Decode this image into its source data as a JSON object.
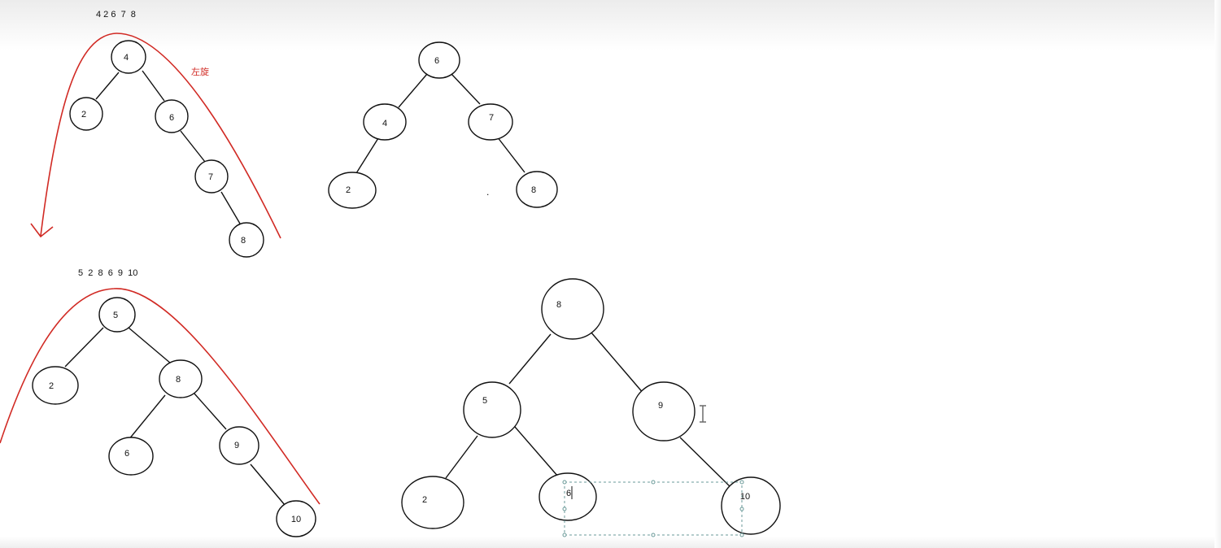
{
  "sequences": {
    "top": "4 2 6  7  8",
    "bottom": "5  2  8  6  9  10"
  },
  "annotation": {
    "text": "左旋",
    "color": "#d12a24"
  },
  "trees": {
    "t1": {
      "n4": "4",
      "n2": "2",
      "n6": "6",
      "n7": "7",
      "n8": "8"
    },
    "t2": {
      "n6": "6",
      "n4": "4",
      "n7": "7",
      "n2": "2",
      "n8": "8"
    },
    "t3": {
      "n5": "5",
      "n2": "2",
      "n8": "8",
      "n6": "6",
      "n9": "9",
      "n10": "10"
    },
    "t4": {
      "n8": "8",
      "n5": "5",
      "n9": "9",
      "n2": "2",
      "n6": "6",
      "n10": "10"
    }
  },
  "stray_mark": ".",
  "colors": {
    "arrow": "#d12a24",
    "node_stroke": "#111111",
    "selection": "#6a9a98"
  },
  "icons": {
    "cursor": "i-beam-cursor-icon"
  }
}
